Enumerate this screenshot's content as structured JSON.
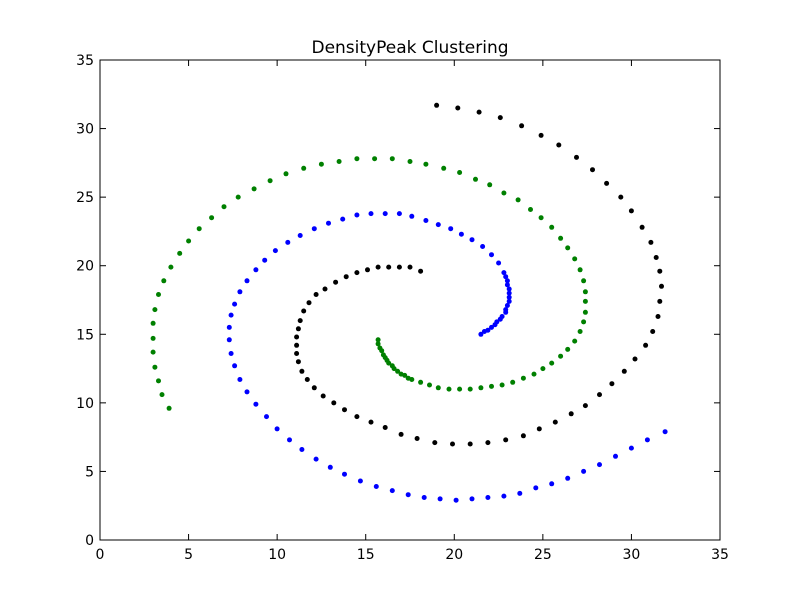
{
  "chart_data": {
    "type": "scatter",
    "title": "DensityPeak Clustering",
    "xlabel": "",
    "ylabel": "",
    "xlim": [
      0,
      35
    ],
    "ylim": [
      0,
      35
    ],
    "xticks": [
      "0",
      "5",
      "10",
      "15",
      "20",
      "25",
      "30",
      "35"
    ],
    "yticks": [
      "0",
      "5",
      "10",
      "15",
      "20",
      "25",
      "30",
      "35"
    ],
    "grid": false,
    "series": [
      {
        "color": "#000000",
        "points": [
          [
            12.2,
            17.9
          ],
          [
            11.8,
            17.3
          ],
          [
            11.5,
            16.7
          ],
          [
            11.3,
            16.0
          ],
          [
            11.2,
            15.4
          ],
          [
            11.1,
            14.8
          ],
          [
            11.1,
            14.2
          ],
          [
            11.1,
            13.6
          ],
          [
            11.2,
            13.0
          ],
          [
            11.4,
            12.3
          ],
          [
            11.7,
            11.7
          ],
          [
            12.1,
            11.1
          ],
          [
            12.6,
            10.5
          ],
          [
            13.2,
            10.0
          ],
          [
            13.8,
            9.5
          ],
          [
            14.5,
            9.0
          ],
          [
            15.3,
            8.6
          ],
          [
            16.1,
            8.2
          ],
          [
            17.0,
            7.7
          ],
          [
            17.9,
            7.4
          ],
          [
            18.9,
            7.1
          ],
          [
            19.9,
            7.0
          ],
          [
            20.9,
            7.0
          ],
          [
            21.9,
            7.1
          ],
          [
            22.9,
            7.3
          ],
          [
            23.9,
            7.6
          ],
          [
            24.8,
            8.1
          ],
          [
            25.7,
            8.6
          ],
          [
            26.6,
            9.2
          ],
          [
            27.4,
            9.8
          ],
          [
            28.2,
            10.6
          ],
          [
            28.9,
            11.4
          ],
          [
            29.6,
            12.3
          ],
          [
            30.2,
            13.2
          ],
          [
            30.8,
            14.2
          ],
          [
            31.2,
            15.2
          ],
          [
            31.5,
            16.3
          ],
          [
            31.6,
            17.4
          ],
          [
            31.7,
            18.5
          ],
          [
            31.6,
            19.6
          ],
          [
            31.4,
            20.6
          ],
          [
            31.1,
            21.7
          ],
          [
            30.6,
            22.8
          ],
          [
            30.0,
            24.0
          ],
          [
            29.4,
            25.0
          ],
          [
            28.6,
            26.0
          ],
          [
            27.8,
            27.0
          ],
          [
            26.9,
            27.9
          ],
          [
            25.9,
            28.8
          ],
          [
            24.9,
            29.5
          ],
          [
            23.8,
            30.2
          ],
          [
            22.6,
            30.8
          ],
          [
            21.4,
            31.2
          ],
          [
            20.2,
            31.5
          ],
          [
            19.0,
            31.7
          ],
          [
            12.7,
            18.3
          ],
          [
            13.3,
            18.8
          ],
          [
            13.9,
            19.2
          ],
          [
            14.5,
            19.5
          ],
          [
            15.1,
            19.7
          ],
          [
            15.7,
            19.9
          ],
          [
            16.3,
            19.9
          ],
          [
            16.9,
            19.9
          ],
          [
            17.5,
            19.9
          ],
          [
            18.1,
            19.6
          ]
        ]
      },
      {
        "color": "#0000ff",
        "points": [
          [
            21.5,
            15.0
          ],
          [
            21.9,
            15.3
          ],
          [
            22.3,
            15.7
          ],
          [
            22.6,
            16.1
          ],
          [
            22.9,
            16.6
          ],
          [
            23.0,
            17.1
          ],
          [
            23.1,
            17.7
          ],
          [
            23.1,
            18.3
          ],
          [
            23.0,
            18.9
          ],
          [
            22.8,
            19.5
          ],
          [
            22.5,
            20.2
          ],
          [
            22.1,
            20.8
          ],
          [
            21.6,
            21.4
          ],
          [
            21.0,
            21.9
          ],
          [
            20.4,
            22.3
          ],
          [
            19.8,
            22.7
          ],
          [
            19.1,
            23.0
          ],
          [
            18.4,
            23.3
          ],
          [
            17.6,
            23.6
          ],
          [
            16.9,
            23.8
          ],
          [
            16.1,
            23.8
          ],
          [
            15.3,
            23.8
          ],
          [
            14.5,
            23.7
          ],
          [
            13.7,
            23.4
          ],
          [
            12.9,
            23.1
          ],
          [
            12.1,
            22.7
          ],
          [
            11.3,
            22.2
          ],
          [
            10.6,
            21.7
          ],
          [
            9.9,
            21.1
          ],
          [
            9.3,
            20.4
          ],
          [
            8.8,
            19.7
          ],
          [
            8.3,
            18.9
          ],
          [
            7.9,
            18.1
          ],
          [
            7.6,
            17.2
          ],
          [
            7.4,
            16.4
          ],
          [
            7.3,
            15.5
          ],
          [
            7.3,
            14.6
          ],
          [
            7.4,
            13.6
          ],
          [
            7.6,
            12.7
          ],
          [
            7.9,
            11.7
          ],
          [
            8.3,
            10.8
          ],
          [
            8.8,
            9.9
          ],
          [
            9.4,
            9.0
          ],
          [
            10.0,
            8.1
          ],
          [
            10.7,
            7.3
          ],
          [
            11.4,
            6.6
          ],
          [
            12.2,
            5.9
          ],
          [
            13.0,
            5.3
          ],
          [
            13.8,
            4.8
          ],
          [
            14.7,
            4.3
          ],
          [
            15.6,
            3.9
          ],
          [
            16.5,
            3.6
          ],
          [
            17.4,
            3.3
          ],
          [
            18.3,
            3.1
          ],
          [
            19.2,
            3.0
          ],
          [
            20.1,
            2.9
          ],
          [
            21.0,
            3.0
          ],
          [
            21.9,
            3.1
          ],
          [
            22.8,
            3.2
          ],
          [
            23.7,
            3.4
          ],
          [
            24.6,
            3.8
          ],
          [
            25.5,
            4.1
          ],
          [
            26.4,
            4.5
          ],
          [
            27.3,
            5.0
          ],
          [
            28.2,
            5.5
          ],
          [
            29.1,
            6.1
          ],
          [
            30.0,
            6.7
          ],
          [
            30.9,
            7.3
          ],
          [
            31.9,
            7.9
          ],
          [
            21.7,
            15.2
          ],
          [
            22.1,
            15.5
          ],
          [
            22.4,
            15.9
          ],
          [
            22.7,
            16.3
          ],
          [
            22.9,
            16.8
          ],
          [
            23.1,
            17.4
          ],
          [
            23.1,
            18.0
          ],
          [
            23.0,
            18.6
          ],
          [
            22.9,
            19.2
          ]
        ]
      },
      {
        "color": "#008000",
        "points": [
          [
            15.7,
            14.6
          ],
          [
            15.8,
            14.0
          ],
          [
            16.0,
            13.5
          ],
          [
            16.2,
            13.1
          ],
          [
            16.5,
            12.7
          ],
          [
            16.8,
            12.3
          ],
          [
            17.2,
            12.0
          ],
          [
            17.6,
            11.7
          ],
          [
            18.1,
            11.5
          ],
          [
            18.6,
            11.3
          ],
          [
            19.1,
            11.1
          ],
          [
            19.7,
            11.0
          ],
          [
            20.3,
            11.0
          ],
          [
            20.9,
            11.0
          ],
          [
            21.5,
            11.1
          ],
          [
            22.1,
            11.2
          ],
          [
            22.7,
            11.3
          ],
          [
            23.3,
            11.5
          ],
          [
            23.9,
            11.8
          ],
          [
            24.5,
            12.1
          ],
          [
            25.0,
            12.5
          ],
          [
            25.5,
            12.9
          ],
          [
            26.0,
            13.4
          ],
          [
            26.4,
            13.9
          ],
          [
            26.8,
            14.5
          ],
          [
            27.1,
            15.2
          ],
          [
            27.3,
            15.9
          ],
          [
            27.4,
            16.6
          ],
          [
            27.4,
            17.4
          ],
          [
            27.4,
            18.1
          ],
          [
            27.3,
            18.9
          ],
          [
            27.1,
            19.7
          ],
          [
            26.8,
            20.5
          ],
          [
            26.4,
            21.3
          ],
          [
            26.0,
            22.0
          ],
          [
            25.5,
            22.8
          ],
          [
            24.9,
            23.5
          ],
          [
            24.3,
            24.1
          ],
          [
            23.6,
            24.8
          ],
          [
            22.8,
            25.3
          ],
          [
            22.0,
            25.9
          ],
          [
            21.2,
            26.3
          ],
          [
            20.3,
            26.8
          ],
          [
            19.4,
            27.1
          ],
          [
            18.4,
            27.4
          ],
          [
            17.5,
            27.6
          ],
          [
            16.5,
            27.8
          ],
          [
            15.5,
            27.8
          ],
          [
            14.5,
            27.8
          ],
          [
            13.5,
            27.6
          ],
          [
            12.5,
            27.4
          ],
          [
            11.5,
            27.1
          ],
          [
            10.5,
            26.7
          ],
          [
            9.6,
            26.2
          ],
          [
            8.7,
            25.6
          ],
          [
            7.8,
            25.0
          ],
          [
            7.0,
            24.3
          ],
          [
            6.3,
            23.5
          ],
          [
            5.6,
            22.7
          ],
          [
            5.0,
            21.8
          ],
          [
            4.5,
            20.9
          ],
          [
            4.0,
            19.9
          ],
          [
            3.6,
            18.9
          ],
          [
            3.3,
            17.9
          ],
          [
            3.1,
            16.8
          ],
          [
            3.0,
            15.8
          ],
          [
            3.0,
            14.7
          ],
          [
            3.0,
            13.7
          ],
          [
            3.1,
            12.6
          ],
          [
            3.3,
            11.6
          ],
          [
            3.5,
            10.6
          ],
          [
            3.9,
            9.6
          ],
          [
            15.7,
            14.3
          ],
          [
            15.9,
            13.8
          ],
          [
            16.1,
            13.3
          ],
          [
            16.3,
            12.9
          ],
          [
            16.6,
            12.5
          ],
          [
            17.0,
            12.1
          ],
          [
            17.4,
            11.8
          ]
        ]
      }
    ]
  }
}
